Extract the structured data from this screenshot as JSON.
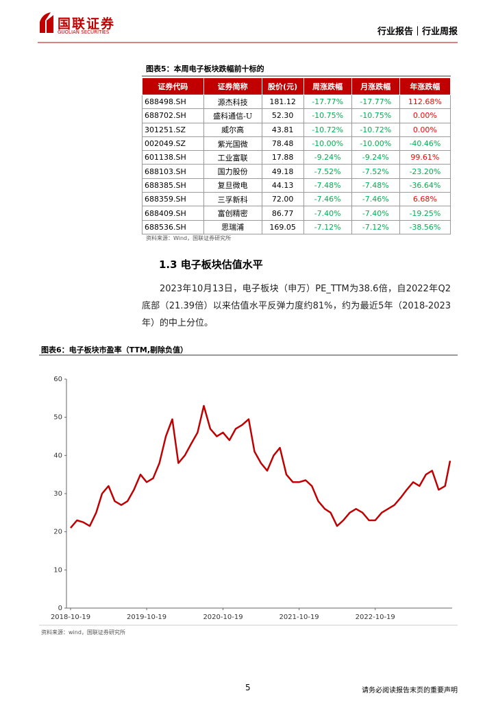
{
  "header": {
    "logo": "国联证券",
    "logo_en": "GUOLIAN SECURITIES",
    "right": "行业报告｜行业周报"
  },
  "table": {
    "title": "图表5：本周电子板块跌幅前十标的",
    "columns": [
      "证券代码",
      "证券简称",
      "股价(元)",
      "周涨跌幅",
      "月涨跌幅",
      "年涨跌幅"
    ],
    "rows": [
      [
        "688498.SH",
        "源杰科技",
        "181.12",
        "-17.77%",
        "-17.77%",
        "112.68%"
      ],
      [
        "688702.SH",
        "盛科通信-U",
        "52.30",
        "-10.75%",
        "-10.75%",
        "0.00%"
      ],
      [
        "301251.SZ",
        "威尔高",
        "43.81",
        "-10.72%",
        "-10.72%",
        "0.00%"
      ],
      [
        "002049.SZ",
        "紫光国微",
        "78.48",
        "-10.00%",
        "-10.00%",
        "-40.46%"
      ],
      [
        "601138.SH",
        "工业富联",
        "17.88",
        "-9.24%",
        "-9.24%",
        "99.61%"
      ],
      [
        "688103.SH",
        "国力股份",
        "49.18",
        "-7.52%",
        "-7.52%",
        "-23.20%"
      ],
      [
        "688385.SH",
        "复旦微电",
        "44.13",
        "-7.48%",
        "-7.48%",
        "-36.64%"
      ],
      [
        "688359.SH",
        "三孚新科",
        "72.00",
        "-7.46%",
        "-7.46%",
        "6.68%"
      ],
      [
        "688409.SH",
        "富创精密",
        "86.77",
        "-7.40%",
        "-7.40%",
        "-19.25%"
      ],
      [
        "688536.SH",
        "思瑞浦",
        "169.05",
        "-7.12%",
        "-7.12%",
        "-38.56%"
      ]
    ],
    "source": "资料来源：Wind，国联证券研究所"
  },
  "section": {
    "heading": "1.3 电子板块估值水平",
    "paragraph": "2023年10月13日，电子板块（申万）PE_TTM为38.6倍，自2022年Q2底部（21.39倍）以来估值水平反弹力度约81%，约为最近5年（2018-2023年）的中上分位。"
  },
  "chart_data": {
    "type": "line",
    "title": "图表6：电子板块市盈率（TTM,剔除负值）",
    "color": "#c00000",
    "x": [
      "2018-10-19",
      "2018-11-19",
      "2018-12-19",
      "2019-01-19",
      "2019-02-19",
      "2019-03-19",
      "2019-04-19",
      "2019-05-19",
      "2019-06-19",
      "2019-07-19",
      "2019-08-19",
      "2019-09-19",
      "2019-10-19",
      "2019-11-19",
      "2019-12-19",
      "2020-01-19",
      "2020-02-19",
      "2020-03-19",
      "2020-04-19",
      "2020-05-19",
      "2020-06-19",
      "2020-07-19",
      "2020-08-19",
      "2020-09-19",
      "2020-10-19",
      "2020-11-19",
      "2020-12-19",
      "2021-01-19",
      "2021-02-19",
      "2021-03-19",
      "2021-04-19",
      "2021-05-19",
      "2021-06-19",
      "2021-07-19",
      "2021-08-19",
      "2021-09-19",
      "2021-10-19",
      "2021-11-19",
      "2021-12-19",
      "2022-01-19",
      "2022-02-19",
      "2022-03-19",
      "2022-04-19",
      "2022-05-19",
      "2022-06-19",
      "2022-07-19",
      "2022-08-19",
      "2022-09-19",
      "2022-10-19",
      "2022-11-19",
      "2022-12-19",
      "2023-01-19",
      "2023-02-19",
      "2023-03-19",
      "2023-04-19",
      "2023-05-19",
      "2023-06-19",
      "2023-07-19",
      "2023-08-19",
      "2023-09-19",
      "2023-10-13"
    ],
    "values": [
      21,
      23,
      22.5,
      21.5,
      25,
      30,
      32,
      28,
      27,
      28,
      31,
      35,
      33,
      34,
      38,
      45,
      49.5,
      38,
      40,
      43,
      46,
      53,
      47,
      45,
      46,
      44,
      47,
      48,
      49.5,
      41,
      38,
      36,
      40,
      42,
      35,
      33,
      33,
      33.5,
      32,
      28,
      26,
      25,
      21.5,
      23,
      25,
      26,
      25,
      23,
      23,
      25,
      26,
      27,
      29,
      31,
      33,
      32,
      35,
      36,
      31,
      32,
      38.6
    ],
    "xlim": [
      "2018-10-19",
      "2023-10-13"
    ],
    "ylim": [
      0,
      60
    ],
    "yticks": [
      0,
      10,
      20,
      30,
      40,
      50,
      60
    ],
    "xticks": [
      "2018-10-19",
      "2019-10-19",
      "2020-10-19",
      "2021-10-19",
      "2022-10-19"
    ],
    "source": "资料来源：wind，国联证券研究所"
  },
  "footer": {
    "page": "5",
    "disclaimer": "请务必阅读报告末页的重要声明"
  }
}
